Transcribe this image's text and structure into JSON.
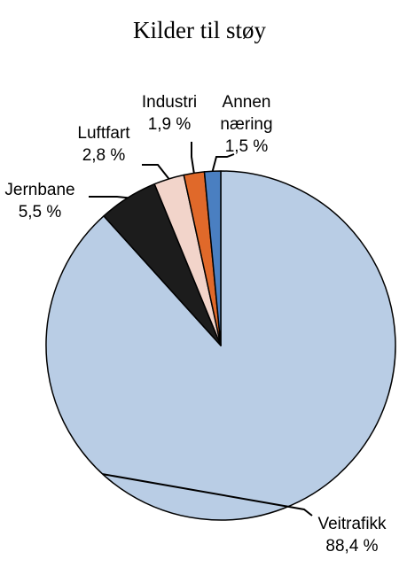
{
  "chart_data": {
    "type": "pie",
    "title": "Kilder til støy",
    "start_angle_deg": 0,
    "direction": "clockwise",
    "slices": [
      {
        "name": "Veitrafikk",
        "label_lines": [
          "Veitrafikk",
          "88,4 %"
        ],
        "value": 88.4,
        "color": "#b9cde5"
      },
      {
        "name": "Jernbane",
        "label_lines": [
          "Jernbane",
          "5,5 %"
        ],
        "value": 5.5,
        "color": "#1c1c1c"
      },
      {
        "name": "Luftfart",
        "label_lines": [
          "Luftfart",
          "2,8 %"
        ],
        "value": 2.8,
        "color": "#f2d4ca"
      },
      {
        "name": "Industri",
        "label_lines": [
          "Industri",
          "1,9 %"
        ],
        "value": 1.9,
        "color": "#e0692a"
      },
      {
        "name": "Annen næring",
        "label_lines": [
          "Annen",
          "næring",
          "1,5 %"
        ],
        "value": 1.5,
        "color": "#4a7fc1"
      }
    ]
  }
}
